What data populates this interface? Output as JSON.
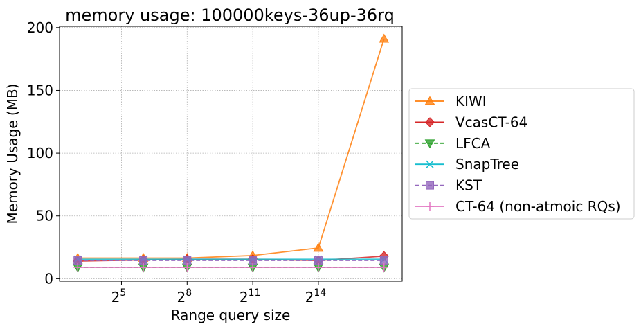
{
  "chart_data": {
    "type": "line",
    "title": "memory usage: 100000keys-36up-36rq",
    "xlabel": "Range query size",
    "ylabel": "Memory Usage (MB)",
    "x_scale": "log2",
    "x": [
      8,
      64,
      256,
      2048,
      16384,
      131072
    ],
    "xlim": [
      4.5,
      233000
    ],
    "ylim": [
      -2,
      201
    ],
    "x_ticks": [
      {
        "value": 32,
        "base": "2",
        "exp": "5"
      },
      {
        "value": 256,
        "base": "2",
        "exp": "8"
      },
      {
        "value": 2048,
        "base": "2",
        "exp": "11"
      },
      {
        "value": 16384,
        "base": "2",
        "exp": "14"
      }
    ],
    "y_ticks": [
      0,
      50,
      100,
      150,
      200
    ],
    "grid": true,
    "legend_position": "outside-right",
    "series": [
      {
        "name": "KIWI",
        "color": "#ff7f0e",
        "marker": "triangle-up",
        "dash": false,
        "values": [
          16.5,
          16.5,
          16.5,
          18.5,
          24.5,
          191
        ]
      },
      {
        "name": "VcasCT-64",
        "color": "#d62728",
        "marker": "diamond",
        "dash": false,
        "values": [
          14,
          15,
          15.5,
          15.5,
          14.5,
          18
        ]
      },
      {
        "name": "LFCA",
        "color": "#2ca02c",
        "marker": "triangle-down",
        "dash": true,
        "values": [
          9,
          9,
          9,
          9,
          9,
          9
        ]
      },
      {
        "name": "SnapTree",
        "color": "#17becf",
        "marker": "x",
        "dash": false,
        "values": [
          15.5,
          15.5,
          15.5,
          15.5,
          15.5,
          15.5
        ]
      },
      {
        "name": "KST",
        "color": "#9467bd",
        "marker": "square",
        "dash": true,
        "values": [
          14.5,
          14.5,
          14.5,
          14.5,
          14.5,
          14.5
        ]
      },
      {
        "name": "CT-64 (non-atmoic RQs)",
        "color": "#e377c2",
        "marker": "plus",
        "dash": false,
        "values": [
          9,
          9,
          9,
          9,
          9,
          9
        ]
      }
    ]
  }
}
